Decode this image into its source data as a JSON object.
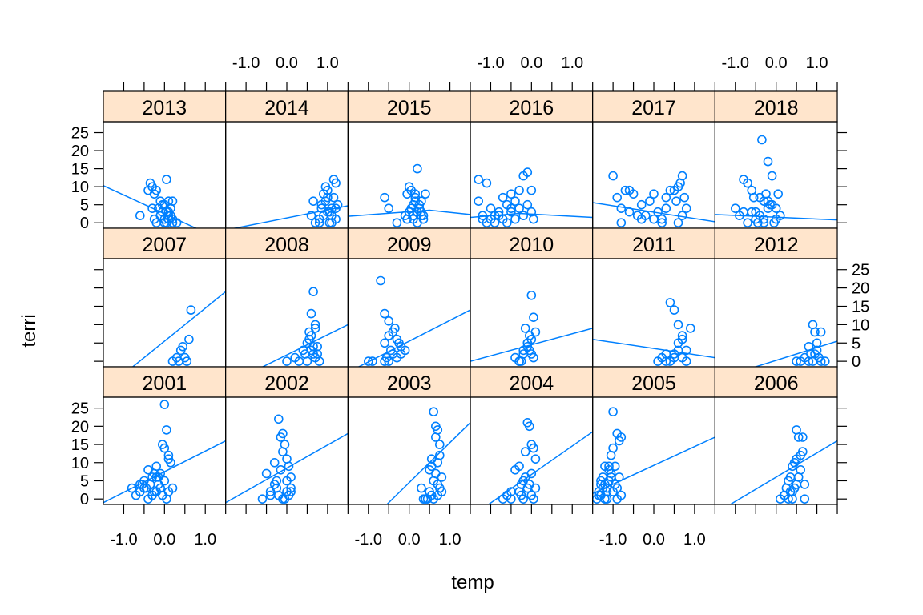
{
  "colors": {
    "point": "#0080ff",
    "line": "#0080ff",
    "strip": "#ffe5cc",
    "border": "#000000"
  },
  "chart_data": {
    "type": "scatter",
    "layout": "trellis 6 columns x 3 rows",
    "xlabel": "temp",
    "ylabel": "terri",
    "xlim": [
      -1.5,
      1.5
    ],
    "ylim": [
      -1.5,
      28
    ],
    "x_ticks": [
      -1.0,
      -0.5,
      0.0,
      0.5,
      1.0,
      1.5
    ],
    "x_tick_labels": [
      "-1.0",
      "0.0",
      "1.0"
    ],
    "x_tick_label_values": [
      -1.0,
      0.0,
      1.0
    ],
    "y_ticks": [
      0,
      5,
      10,
      15,
      20,
      25
    ],
    "y_tick_labels": [
      "0",
      "5",
      "10",
      "15",
      "20",
      "25"
    ],
    "panels": [
      {
        "year": "2013",
        "fit": [
          -1.5,
          10.3,
          1.5,
          -5.3
        ],
        "x": [
          -0.6,
          -0.4,
          -0.35,
          -0.3,
          -0.25,
          -0.2,
          -0.1,
          -0.15,
          -0.05,
          0.0,
          0.05,
          0.1,
          0.15,
          0.2,
          0.3,
          -0.25,
          -0.2,
          -0.1,
          0.0,
          0.1,
          0.2,
          0.05,
          -0.05,
          0.15,
          0.1,
          -0.3,
          0.0,
          0.2,
          0.1,
          0.05
        ],
        "y": [
          2,
          9,
          11,
          10,
          8,
          9,
          6,
          4,
          3,
          5,
          12,
          6,
          2,
          0,
          0,
          1,
          0,
          2,
          1,
          3,
          6,
          0,
          5,
          4,
          1,
          4,
          0,
          1,
          2,
          3
        ]
      },
      {
        "year": "2014",
        "fit": [
          -1.5,
          -2.0,
          1.5,
          4.7
        ],
        "x": [
          0.6,
          0.65,
          0.7,
          0.8,
          0.85,
          0.9,
          0.95,
          1.0,
          1.05,
          1.1,
          1.15,
          1.2,
          1.25,
          0.9,
          0.95,
          1.0,
          1.1,
          1.2,
          0.8,
          1.0,
          1.05,
          1.15,
          0.85,
          1.1,
          1.2
        ],
        "y": [
          2,
          6,
          0,
          1,
          4,
          8,
          10,
          7,
          3,
          0,
          12,
          11,
          5,
          2,
          6,
          9,
          4,
          1,
          0,
          3,
          0,
          7,
          5,
          2,
          4
        ]
      },
      {
        "year": "2015",
        "fit": [
          -1.5,
          1.8,
          0.5,
          3.5,
          1.5,
          2.3
        ],
        "x": [
          -0.6,
          -0.5,
          -0.3,
          -0.1,
          -0.05,
          0.0,
          0.05,
          0.1,
          0.15,
          0.2,
          0.25,
          0.3,
          0.35,
          0.4,
          0.0,
          0.1,
          0.2,
          0.3,
          -0.05,
          0.05,
          0.15,
          0.25,
          0.35,
          0.1,
          0.2,
          0.3,
          0.15
        ],
        "y": [
          7,
          4,
          0,
          2,
          8,
          10,
          9,
          5,
          6,
          15,
          4,
          3,
          1,
          8,
          3,
          2,
          0,
          6,
          1,
          4,
          7,
          5,
          2,
          1,
          3,
          2,
          8
        ]
      },
      {
        "year": "2016",
        "fit": [
          -1.5,
          1.5,
          -0.3,
          2.6,
          1.5,
          1.5
        ],
        "x": [
          -1.3,
          -1.2,
          -1.1,
          -1.0,
          -0.9,
          -0.8,
          -0.7,
          -0.6,
          -0.5,
          -0.4,
          -0.3,
          -0.2,
          -0.1,
          0.0,
          0.05,
          -1.3,
          -1.1,
          -0.9,
          -0.7,
          -0.5,
          -0.3,
          -0.1,
          -1.2,
          -0.8,
          -0.4,
          0.0,
          -0.6,
          -0.2,
          -1.0,
          -0.5
        ],
        "y": [
          12,
          1,
          11,
          4,
          0,
          2,
          7,
          5,
          8,
          6,
          9,
          13,
          14,
          3,
          1,
          6,
          0,
          2,
          1,
          3,
          4,
          5,
          2,
          3,
          1,
          9,
          0,
          2,
          1,
          4
        ]
      },
      {
        "year": "2017",
        "fit": [
          -1.5,
          5.6,
          1.5,
          0.3
        ],
        "x": [
          -1.0,
          -0.9,
          -0.8,
          -0.7,
          -0.6,
          -0.5,
          -0.3,
          -0.2,
          -0.1,
          0.0,
          0.1,
          0.2,
          0.3,
          0.4,
          0.5,
          0.6,
          0.7,
          0.8,
          0.6,
          0.7,
          -0.8,
          -0.6,
          -0.3,
          0.0,
          0.3,
          0.65,
          0.75,
          0.55,
          0.2,
          -0.4
        ],
        "y": [
          13,
          7,
          4,
          9,
          9,
          8,
          1,
          2,
          6,
          8,
          3,
          1,
          7,
          9,
          9,
          10,
          13,
          4,
          0,
          2,
          0,
          3,
          5,
          1,
          4,
          11,
          7,
          6,
          0,
          2
        ]
      },
      {
        "year": "2018",
        "fit": [
          -1.5,
          2.3,
          1.5,
          0.8
        ],
        "x": [
          -1.0,
          -0.9,
          -0.8,
          -0.7,
          -0.6,
          -0.5,
          -0.4,
          -0.3,
          -0.2,
          -0.1,
          0.0,
          0.05,
          0.1,
          -0.35,
          -0.2,
          -0.1,
          -0.3,
          -0.5,
          -0.7,
          -0.6,
          -0.4,
          -0.25,
          -0.15,
          0.0,
          -0.45,
          -0.8,
          -0.55,
          -0.2,
          -0.3,
          -0.05
        ],
        "y": [
          4,
          2,
          12,
          11,
          9,
          3,
          7,
          0,
          6,
          5,
          4,
          8,
          2,
          23,
          17,
          13,
          6,
          1,
          0,
          3,
          2,
          8,
          5,
          1,
          0,
          3,
          7,
          4,
          1,
          0
        ]
      },
      {
        "year": "2007",
        "fit": [
          -1.5,
          -8.0,
          1.5,
          19.0
        ],
        "x": [
          0.2,
          0.3,
          0.4,
          0.5,
          0.6,
          0.65,
          0.35,
          0.45,
          0.55
        ],
        "y": [
          0,
          1,
          3,
          1,
          6,
          14,
          0,
          4,
          0
        ]
      },
      {
        "year": "2008",
        "fit": [
          -1.5,
          -6.5,
          1.5,
          10.0
        ],
        "x": [
          0.0,
          0.2,
          0.3,
          0.4,
          0.45,
          0.5,
          0.55,
          0.6,
          0.65,
          0.7,
          0.75,
          0.6,
          0.65,
          0.7,
          0.8,
          0.5,
          0.6,
          0.7,
          0.55,
          0.65,
          0.75
        ],
        "y": [
          0,
          1,
          0,
          3,
          2,
          5,
          8,
          13,
          19,
          10,
          2,
          7,
          4,
          1,
          0,
          0,
          3,
          9,
          6,
          2,
          4
        ]
      },
      {
        "year": "2009",
        "fit": [
          -1.5,
          -3.0,
          1.5,
          14.0
        ],
        "x": [
          -1.0,
          -0.9,
          -0.7,
          -0.6,
          -0.5,
          -0.4,
          -0.3,
          -0.2,
          -0.1,
          -0.6,
          -0.5,
          -0.4,
          -0.3,
          -0.6,
          -0.45,
          -0.35,
          -0.25,
          -0.5,
          -0.2,
          -0.55
        ],
        "y": [
          0,
          0,
          22,
          13,
          11,
          8,
          6,
          4,
          3,
          5,
          7,
          2,
          1,
          0,
          3,
          9,
          5,
          0,
          2,
          1
        ]
      },
      {
        "year": "2010",
        "fit": [
          -1.5,
          0.0,
          1.5,
          9.0
        ],
        "x": [
          -0.4,
          -0.3,
          -0.2,
          -0.1,
          -0.05,
          0.0,
          0.05,
          0.1,
          -0.2,
          -0.1,
          0.0,
          -0.3,
          -0.15,
          -0.05,
          0.05,
          -0.25,
          0.0,
          -0.1
        ],
        "y": [
          1,
          0,
          3,
          5,
          7,
          18,
          12,
          8,
          2,
          4,
          6,
          0,
          9,
          3,
          1,
          0,
          2,
          5
        ]
      },
      {
        "year": "2011",
        "fit": [
          -1.5,
          6.0,
          1.5,
          1.0
        ],
        "x": [
          0.1,
          0.2,
          0.3,
          0.4,
          0.5,
          0.6,
          0.7,
          0.8,
          0.9,
          0.4,
          0.5,
          0.6,
          0.7,
          0.3,
          0.5,
          0.7,
          0.8,
          0.6
        ],
        "y": [
          0,
          1,
          2,
          16,
          14,
          10,
          6,
          3,
          9,
          0,
          1,
          3,
          7,
          0,
          2,
          1,
          0,
          5
        ]
      },
      {
        "year": "2012",
        "fit": [
          -1.5,
          -5.0,
          1.5,
          5.5
        ],
        "x": [
          0.5,
          0.6,
          0.7,
          0.8,
          0.9,
          0.95,
          1.0,
          1.1,
          1.2,
          0.85,
          0.9,
          1.0,
          1.05,
          1.1,
          0.8,
          0.95
        ],
        "y": [
          0,
          0,
          1,
          0,
          10,
          8,
          3,
          8,
          0,
          2,
          0,
          5,
          1,
          0,
          4,
          2
        ]
      },
      {
        "year": "2001",
        "fit": [
          -1.5,
          -1.0,
          1.5,
          16.0
        ],
        "x": [
          -0.8,
          -0.7,
          -0.6,
          -0.5,
          -0.4,
          -0.3,
          -0.25,
          -0.2,
          -0.15,
          -0.1,
          -0.05,
          0.0,
          0.05,
          0.1,
          0.15,
          0.2,
          -0.4,
          -0.3,
          -0.2,
          -0.1,
          0.0,
          0.1,
          -0.5,
          -0.35,
          -0.15,
          0.05,
          -0.6,
          -0.45,
          0.0,
          -0.25,
          -0.05,
          -0.55,
          0.1,
          -0.2
        ],
        "y": [
          3,
          1,
          4,
          5,
          8,
          6,
          2,
          9,
          4,
          7,
          15,
          26,
          19,
          12,
          10,
          3,
          0,
          1,
          2,
          3,
          5,
          2,
          3,
          4,
          6,
          0,
          2,
          3,
          14,
          7,
          1,
          4,
          11,
          6
        ]
      },
      {
        "year": "2002",
        "fit": [
          -1.5,
          -1.0,
          1.5,
          18.0
        ],
        "x": [
          -0.6,
          -0.5,
          -0.4,
          -0.3,
          -0.25,
          -0.2,
          -0.15,
          -0.1,
          -0.05,
          0.0,
          0.05,
          0.1,
          -0.2,
          -0.1,
          0.0,
          0.1,
          -0.3,
          -0.15,
          0.05,
          -0.05,
          -0.25,
          0.0,
          -0.4,
          0.1,
          -0.1
        ],
        "y": [
          0,
          7,
          2,
          10,
          5,
          22,
          17,
          18,
          15,
          11,
          9,
          3,
          1,
          0,
          5,
          2,
          4,
          8,
          1,
          0,
          3,
          2,
          1,
          6,
          13
        ]
      },
      {
        "year": "2003",
        "fit": [
          -1.5,
          -12.0,
          1.5,
          21.0
        ],
        "x": [
          0.3,
          0.4,
          0.5,
          0.55,
          0.6,
          0.65,
          0.7,
          0.75,
          0.8,
          0.5,
          0.6,
          0.7,
          0.75,
          0.65,
          0.55,
          0.45,
          0.7,
          0.8,
          0.6,
          0.35,
          0.75,
          0.65,
          0.55,
          0.7
        ],
        "y": [
          3,
          0,
          8,
          11,
          24,
          20,
          19,
          12,
          6,
          2,
          0,
          1,
          3,
          17,
          9,
          0,
          4,
          2,
          5,
          0,
          15,
          7,
          1,
          10
        ]
      },
      {
        "year": "2004",
        "fit": [
          -1.5,
          -5.0,
          1.5,
          18.5
        ],
        "x": [
          -0.7,
          -0.6,
          -0.5,
          -0.4,
          -0.3,
          -0.25,
          -0.2,
          -0.15,
          -0.1,
          -0.05,
          0.0,
          0.05,
          0.1,
          -0.2,
          -0.1,
          0.0,
          -0.3,
          -0.15,
          0.05,
          -0.05,
          -0.25,
          0.0,
          -0.5,
          0.1
        ],
        "y": [
          0,
          1,
          2,
          8,
          9,
          4,
          5,
          13,
          21,
          20,
          15,
          14,
          11,
          0,
          3,
          1,
          2,
          6,
          0,
          4,
          1,
          7,
          0,
          3
        ]
      },
      {
        "year": "2005",
        "fit": [
          -1.5,
          1.5,
          1.5,
          17.0
        ],
        "x": [
          -1.4,
          -1.35,
          -1.3,
          -1.25,
          -1.2,
          -1.15,
          -1.1,
          -1.05,
          -1.0,
          -0.95,
          -0.9,
          -0.85,
          -0.8,
          -1.3,
          -1.2,
          -1.1,
          -1.0,
          -0.9,
          -0.85,
          -1.15,
          -1.05,
          -0.95,
          -1.25,
          -1.35,
          -1.1,
          -0.9,
          -1.0,
          -1.2,
          -0.8,
          -1.3,
          -1.15,
          -1.05
        ],
        "y": [
          0,
          2,
          5,
          6,
          4,
          3,
          9,
          12,
          24,
          9,
          18,
          16,
          17,
          1,
          0,
          8,
          14,
          3,
          6,
          2,
          7,
          4,
          3,
          1,
          5,
          0,
          2,
          9,
          1,
          4,
          0,
          6
        ]
      },
      {
        "year": "2006",
        "fit": [
          -1.5,
          -4.0,
          1.5,
          16.0
        ],
        "x": [
          0.1,
          0.2,
          0.25,
          0.3,
          0.35,
          0.4,
          0.45,
          0.5,
          0.55,
          0.6,
          0.65,
          0.7,
          0.3,
          0.4,
          0.5,
          0.6,
          0.7,
          0.2,
          0.45,
          0.55,
          0.35,
          0.65,
          0.5,
          0.4
        ],
        "y": [
          0,
          1,
          3,
          5,
          6,
          9,
          10,
          19,
          17,
          12,
          17,
          4,
          0,
          2,
          4,
          8,
          0,
          1,
          3,
          6,
          2,
          13,
          11,
          0
        ]
      }
    ]
  }
}
